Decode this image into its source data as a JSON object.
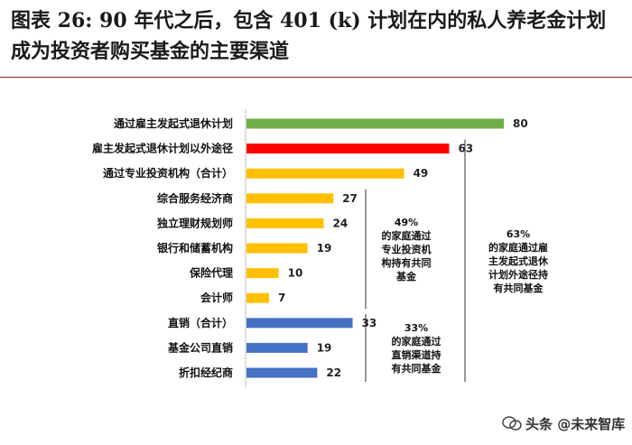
{
  "title": "图表 26: 90 年代之后，包含 401 (k) 计划在内的私人养老金计划成为投资者购买基金的主要渠道",
  "chart_data": {
    "type": "bar",
    "orientation": "horizontal",
    "title": "图表 26: 90 年代之后，包含 401 (k) 计划在内的私人养老金计划成为投资者购买基金的主要渠道",
    "xlabel": "",
    "ylabel": "",
    "xlim": [
      0,
      80
    ],
    "grid": false,
    "categories": [
      "通过雇主发起式退休计划",
      "雇主发起式退休计划以外途径",
      "通过专业投资机构（合计）",
      "综合服务经济商",
      "独立理财规划师",
      "银行和储蓄机构",
      "保险代理",
      "会计师",
      "直销（合计）",
      "基金公司直销",
      "折扣经纪商"
    ],
    "values": [
      80,
      63,
      49,
      27,
      24,
      19,
      10,
      7,
      33,
      19,
      22
    ],
    "value_labels": [
      "80",
      "63",
      "49",
      "27",
      "24",
      "19",
      "10",
      "7",
      "33",
      "19",
      "22"
    ],
    "bar_colors": [
      "#70ad47",
      "#ff0000",
      "#ffc000",
      "#ffc000",
      "#ffc000",
      "#ffc000",
      "#ffc000",
      "#ffc000",
      "#4472c4",
      "#4472c4",
      "#4472c4"
    ],
    "annotations": [
      {
        "name": "49pct",
        "lines": [
          "49%",
          "的家庭通过",
          "专业投资机",
          "构持有共同",
          "基金"
        ],
        "bracket_rows": [
          3,
          7
        ]
      },
      {
        "name": "63pct",
        "lines": [
          "63%",
          "的家庭通过雇",
          "主发起式退休",
          "计划外途径持",
          "有共同基金"
        ],
        "bracket_rows": [
          1,
          10
        ]
      },
      {
        "name": "33pct",
        "lines": [
          "33%",
          "的家庭通过",
          "直销渠道持",
          "有共同基金"
        ],
        "bracket_rows": [
          8,
          10
        ]
      }
    ]
  },
  "watermark": {
    "text": "头条 @未来智库",
    "icon": "wechat-icon"
  }
}
